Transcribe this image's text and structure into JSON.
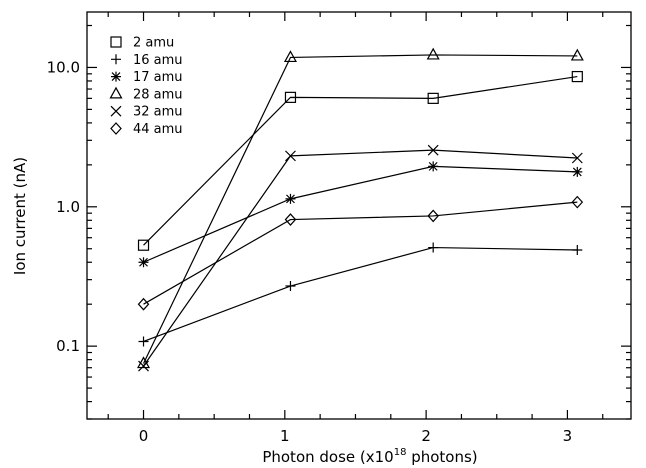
{
  "chart_data": {
    "type": "line",
    "title": "",
    "xlabel": "Photon dose (x10",
    "xlabel_superscript": "18",
    "xlabel_suffix": " photons)",
    "ylabel": "Ion current (nA)",
    "y_scale": "log",
    "xlim": [
      -0.4,
      3.45
    ],
    "ylim": [
      0.03,
      25
    ],
    "x_ticks": [
      0,
      1,
      2,
      3
    ],
    "x_tick_labels": [
      "0",
      "1",
      "2",
      "3"
    ],
    "y_ticks": [
      0.1,
      1.0,
      10.0
    ],
    "y_tick_labels": [
      "0.1",
      "1.0",
      "10.0"
    ],
    "grid": false,
    "legend_position": "top-left",
    "x": [
      0,
      1.04,
      2.05,
      3.07
    ],
    "series": [
      {
        "name": "2 amu",
        "marker": "square",
        "values": [
          0.53,
          6.1,
          6.0,
          8.6
        ]
      },
      {
        "name": "16 amu",
        "marker": "plus",
        "values": [
          0.108,
          0.27,
          0.51,
          0.49
        ]
      },
      {
        "name": "17 amu",
        "marker": "asterisk",
        "values": [
          0.4,
          1.14,
          1.95,
          1.78
        ]
      },
      {
        "name": "28 amu",
        "marker": "triangle",
        "values": [
          0.075,
          11.8,
          12.3,
          12.1
        ]
      },
      {
        "name": "32 amu",
        "marker": "cross",
        "values": [
          0.072,
          2.32,
          2.55,
          2.24
        ]
      },
      {
        "name": "44 amu",
        "marker": "diamond",
        "values": [
          0.2,
          0.81,
          0.86,
          1.08
        ]
      }
    ]
  }
}
